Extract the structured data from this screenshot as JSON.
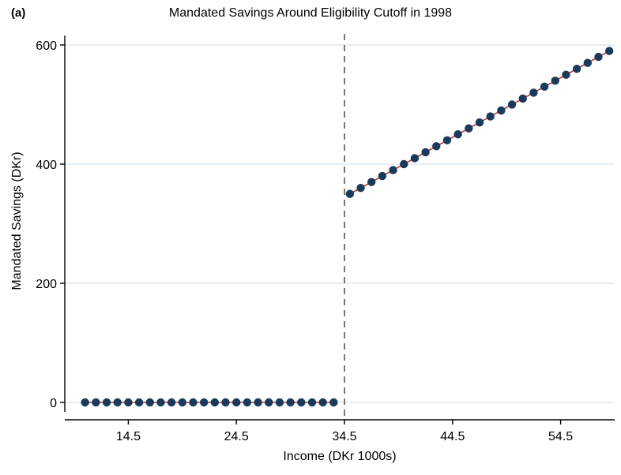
{
  "panel_label": "(a)",
  "chart_data": {
    "type": "scatter",
    "title": "Mandated Savings Around Eligibility Cutoff in 1998",
    "xlabel": "Income (DKr 1000s)",
    "ylabel": "Mandated Savings (DKr)",
    "xlim": [
      9.5,
      59.5
    ],
    "ylim": [
      0,
      600
    ],
    "x_ticks": [
      14.5,
      24.5,
      34.5,
      44.5,
      54.5
    ],
    "x_tick_labels": [
      "14.5",
      "24.5",
      "34.5",
      "44.5",
      "54.5"
    ],
    "y_ticks": [
      0,
      200,
      400,
      600
    ],
    "y_tick_labels": [
      "0",
      "200",
      "400",
      "600"
    ],
    "grid": "horizontal",
    "cutoff_x": 34.5,
    "colors": {
      "points": "#1a3a5c",
      "fit_line": "#c0392b",
      "grid": "#d6e4ec",
      "cutoff": "#777777"
    },
    "series": [
      {
        "points": [
          [
            10.5,
            0
          ],
          [
            11.5,
            0
          ],
          [
            12.5,
            0
          ],
          [
            13.5,
            0
          ],
          [
            14.5,
            0
          ],
          [
            15.5,
            0
          ],
          [
            16.5,
            0
          ],
          [
            17.5,
            0
          ],
          [
            18.5,
            0
          ],
          [
            19.5,
            0
          ],
          [
            20.5,
            0
          ],
          [
            21.5,
            0
          ],
          [
            22.5,
            0
          ],
          [
            23.5,
            0
          ],
          [
            24.5,
            0
          ],
          [
            25.5,
            0
          ],
          [
            26.5,
            0
          ],
          [
            27.5,
            0
          ],
          [
            28.5,
            0
          ],
          [
            29.5,
            0
          ],
          [
            30.5,
            0
          ],
          [
            31.5,
            0
          ],
          [
            32.5,
            0
          ],
          [
            33.5,
            0
          ],
          [
            35,
            350
          ],
          [
            36,
            360
          ],
          [
            37,
            370
          ],
          [
            38,
            380
          ],
          [
            39,
            390
          ],
          [
            40,
            400
          ],
          [
            41,
            410
          ],
          [
            42,
            420
          ],
          [
            43,
            430
          ],
          [
            44,
            440
          ],
          [
            45,
            450
          ],
          [
            46,
            460
          ],
          [
            47,
            470
          ],
          [
            48,
            480
          ],
          [
            49,
            490
          ],
          [
            50,
            500
          ],
          [
            51,
            510
          ],
          [
            52,
            520
          ],
          [
            53,
            530
          ],
          [
            54,
            540
          ],
          [
            55,
            550
          ],
          [
            56,
            560
          ],
          [
            57,
            570
          ],
          [
            58,
            580
          ],
          [
            59,
            590
          ]
        ]
      }
    ],
    "fit_lines": [
      {
        "x": [
          10.5,
          33.5
        ],
        "y": [
          0,
          0
        ]
      },
      {
        "x": [
          35,
          59
        ],
        "y": [
          350,
          590
        ]
      }
    ]
  }
}
